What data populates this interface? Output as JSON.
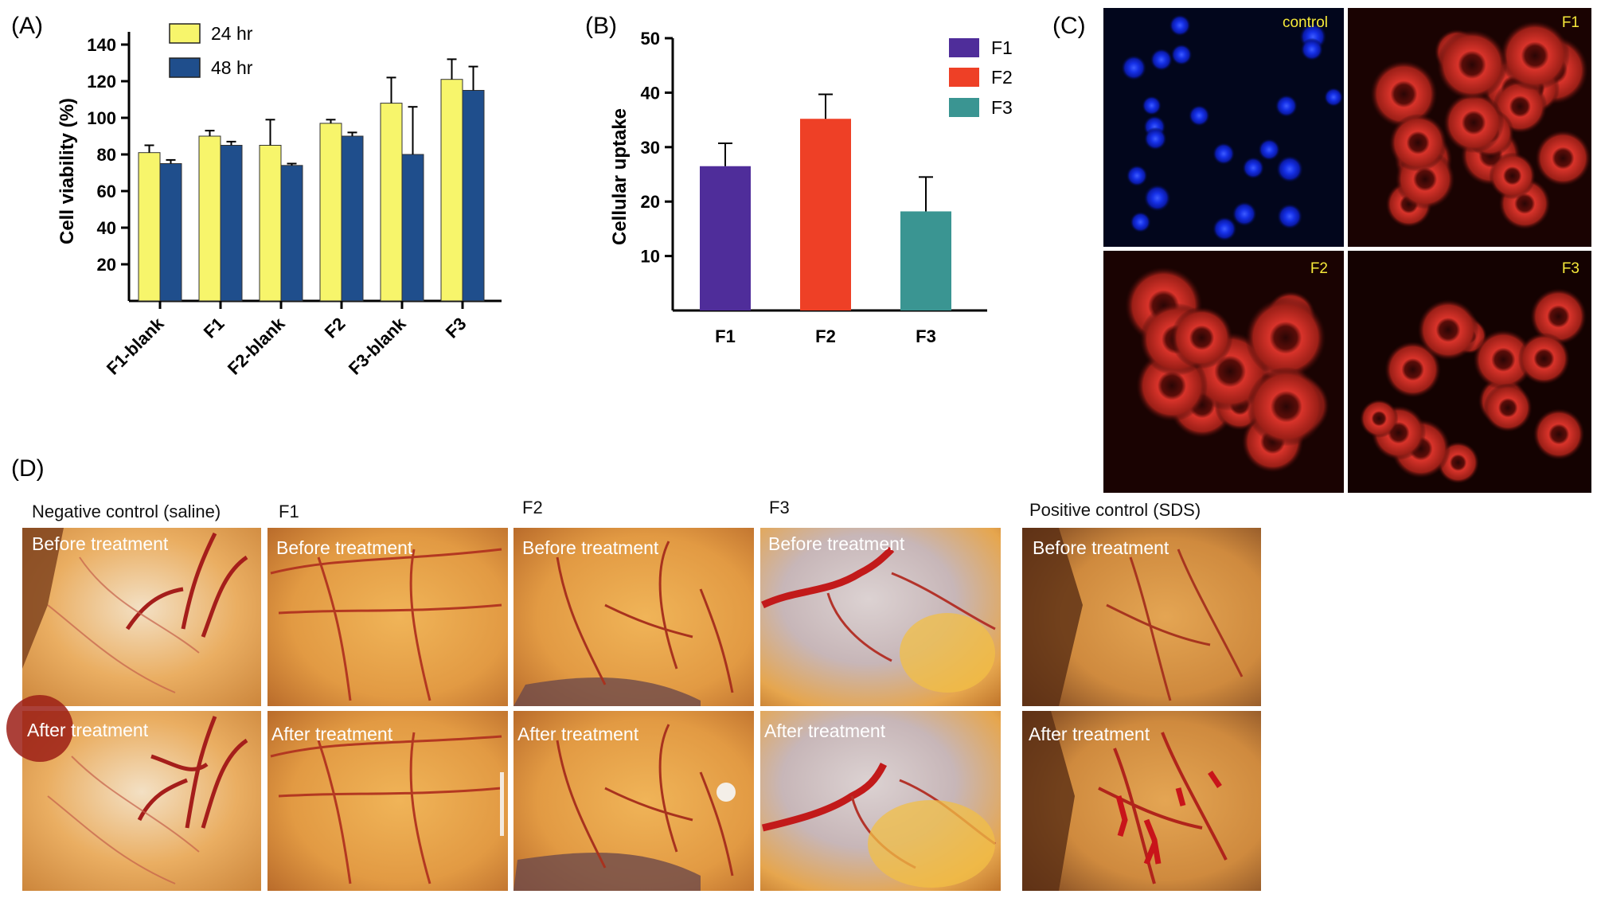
{
  "panels": {
    "A": "(A)",
    "B": "(B)",
    "C": "(C)",
    "D": "(D)"
  },
  "chart_data": [
    {
      "type": "bar",
      "title": "",
      "xlabel": "",
      "ylabel": "Cell viability (%)",
      "categories": [
        "F1-blank",
        "F1",
        "F2-blank",
        "F2",
        "F3-blank",
        "F3"
      ],
      "series": [
        {
          "name": "24 hr",
          "color": "#f7f56b",
          "values": [
            81,
            90,
            85,
            97,
            108,
            121
          ],
          "errors": [
            4,
            3,
            14,
            2,
            14,
            11
          ]
        },
        {
          "name": "48 hr",
          "color": "#1f4e8c",
          "values": [
            75,
            85,
            74,
            90,
            80,
            115
          ],
          "errors": [
            2,
            2,
            1,
            2,
            26,
            13
          ]
        }
      ],
      "yticks": [
        20,
        40,
        60,
        80,
        100,
        120,
        140
      ],
      "ylim": [
        0,
        150
      ],
      "legend": "top-left",
      "grid": false
    },
    {
      "type": "bar",
      "title": "",
      "xlabel": "",
      "ylabel": "Cellular uptake",
      "categories": [
        "F1",
        "F2",
        "F3"
      ],
      "series": [
        {
          "values": [
            26.5,
            35.2,
            18.2
          ],
          "errors": [
            4.2,
            4.5,
            6.3
          ]
        }
      ],
      "colors": [
        "#4f2d9a",
        "#ee4026",
        "#3a9592"
      ],
      "legend_entries": [
        "F1",
        "F2",
        "F3"
      ],
      "yticks": [
        10,
        20,
        30,
        40,
        50
      ],
      "ylim": [
        0,
        50
      ],
      "legend": "top-right",
      "grid": false
    }
  ],
  "microscopy": {
    "tiles": [
      {
        "label": "control",
        "stain": "blue"
      },
      {
        "label": "F1",
        "stain": "red"
      },
      {
        "label": "F2",
        "stain": "red"
      },
      {
        "label": "F3",
        "stain": "red"
      }
    ]
  },
  "het_cam": {
    "before_label": "Before treatment",
    "after_label": "After treatment",
    "groups": [
      {
        "title": "Negative control (saline)"
      },
      {
        "title": "F1"
      },
      {
        "title": "F2"
      },
      {
        "title": "F3"
      },
      {
        "title": "Positive control (SDS)"
      }
    ]
  }
}
